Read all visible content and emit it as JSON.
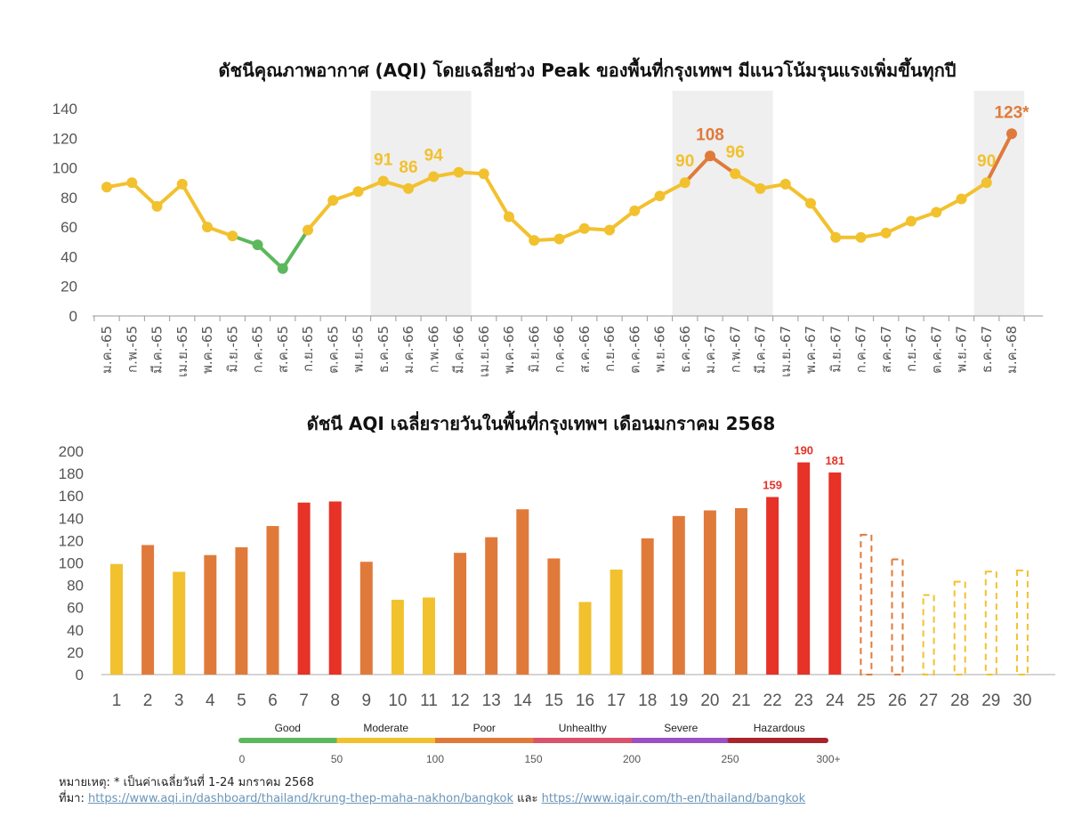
{
  "chart_data": [
    {
      "type": "line",
      "title": "ดัชนีคุณภาพอากาศ (AQI) โดยเฉลี่ยช่วง Peak ของพื้นที่กรุงเทพฯ มีแนวโน้มรุนแรงเพิ่มขึ้นทุกปี",
      "xlabel": "",
      "ylabel": "",
      "ylim": [
        0,
        140
      ],
      "yticks": [
        0,
        20,
        40,
        60,
        80,
        100,
        120,
        140
      ],
      "categories": [
        "ม.ค.-65",
        "ก.พ.-65",
        "มี.ค.-65",
        "เม.ย.-65",
        "พ.ค.-65",
        "มิ.ย.-65",
        "ก.ค.-65",
        "ส.ค.-65",
        "ก.ย.-65",
        "ต.ค.-65",
        "พ.ย.-65",
        "ธ.ค.-65",
        "ม.ค.-66",
        "ก.พ.-66",
        "มี.ค.-66",
        "เม.ย.-66",
        "พ.ค.-66",
        "มิ.ย.-66",
        "ก.ค.-66",
        "ส.ค.-66",
        "ก.ย.-66",
        "ต.ค.-66",
        "พ.ย.-66",
        "ธ.ค.-66",
        "ม.ค.-67",
        "ก.พ.-67",
        "มี.ค.-67",
        "เม.ย.-67",
        "พ.ค.-67",
        "มิ.ย.-67",
        "ก.ค.-67",
        "ส.ค.-67",
        "ก.ย.-67",
        "ต.ค.-67",
        "พ.ย.-67",
        "ธ.ค.-67",
        "ม.ค.-68"
      ],
      "values": [
        87,
        90,
        74,
        89,
        60,
        54,
        48,
        32,
        58,
        78,
        84,
        91,
        86,
        94,
        97,
        96,
        67,
        51,
        52,
        59,
        58,
        71,
        81,
        90,
        108,
        96,
        86,
        89,
        76,
        53,
        53,
        56,
        64,
        70,
        79,
        90,
        123
      ],
      "data_labels": [
        {
          "index": 11,
          "text": "91",
          "color": "#f2c12e"
        },
        {
          "index": 12,
          "text": "86",
          "color": "#f2c12e"
        },
        {
          "index": 13,
          "text": "94",
          "color": "#f2c12e"
        },
        {
          "index": 23,
          "text": "90",
          "color": "#f2c12e"
        },
        {
          "index": 24,
          "text": "108",
          "color": "#e07a3a"
        },
        {
          "index": 25,
          "text": "96",
          "color": "#f2c12e"
        },
        {
          "index": 35,
          "text": "90",
          "color": "#f2c12e"
        },
        {
          "index": 36,
          "text": "123*",
          "color": "#e07a3a"
        }
      ],
      "highlight_ranges": [
        [
          11,
          14
        ],
        [
          23,
          26
        ],
        [
          35,
          36
        ]
      ],
      "grid": false,
      "colors": {
        "good": "#5cb85c",
        "moderate": "#f2c12e",
        "poor": "#e07a3a",
        "highlight": "#efefef"
      }
    },
    {
      "type": "bar",
      "title": "ดัชนี AQI เฉลี่ยรายวันในพื้นที่กรุงเทพฯ เดือนมกราคม 2568",
      "xlabel": "",
      "ylabel": "",
      "ylim": [
        0,
        200
      ],
      "yticks": [
        0,
        20,
        40,
        60,
        80,
        100,
        120,
        140,
        160,
        180,
        200
      ],
      "categories": [
        "1",
        "2",
        "3",
        "4",
        "5",
        "6",
        "7",
        "8",
        "9",
        "10",
        "11",
        "12",
        "13",
        "14",
        "15",
        "16",
        "17",
        "18",
        "19",
        "20",
        "21",
        "22",
        "23",
        "24",
        "25",
        "26",
        "27",
        "28",
        "29",
        "30"
      ],
      "values": [
        99,
        116,
        92,
        107,
        114,
        133,
        154,
        155,
        101,
        67,
        69,
        109,
        123,
        148,
        104,
        65,
        94,
        122,
        142,
        147,
        149,
        159,
        190,
        181,
        126,
        104,
        72,
        84,
        93,
        94
      ],
      "forecast_from_index": 24,
      "data_labels": [
        {
          "index": 21,
          "text": "159"
        },
        {
          "index": 22,
          "text": "190"
        },
        {
          "index": 23,
          "text": "181"
        }
      ],
      "grid": false,
      "colors": {
        "moderate": "#f2c12e",
        "poor": "#e07a3a",
        "unhealthy": "#e63227"
      }
    }
  ],
  "aqi_scale": {
    "levels": [
      {
        "name": "Good",
        "color": "#5cb85c"
      },
      {
        "name": "Moderate",
        "color": "#f2c12e"
      },
      {
        "name": "Poor",
        "color": "#e07a3a"
      },
      {
        "name": "Unhealthy",
        "color": "#d9536b"
      },
      {
        "name": "Severe",
        "color": "#9b4fc4"
      },
      {
        "name": "Hazardous",
        "color": "#a8252b"
      }
    ],
    "ticks": [
      "0",
      "50",
      "100",
      "150",
      "200",
      "250",
      "300+"
    ]
  },
  "notes": {
    "note_prefix": "หมายเหตุ: * เป็นค่าเฉลี่ยวันที่ 1-24 มกราคม 2568",
    "source_prefix": "ที่มา: ",
    "link1": "https://www.aqi.in/dashboard/thailand/krung-thep-maha-nakhon/bangkok",
    "and_text": " และ ",
    "link2": "https://www.iqair.com/th-en/thailand/bangkok"
  }
}
